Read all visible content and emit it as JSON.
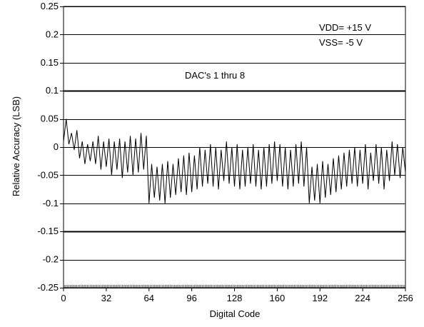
{
  "chart_data": {
    "type": "line",
    "title": "",
    "xlabel": "Digital Code",
    "ylabel": "Relative Accuracy (LSB)",
    "xlim": [
      0,
      256
    ],
    "ylim": [
      -0.25,
      0.25
    ],
    "x_ticks": [
      0,
      32,
      64,
      96,
      128,
      160,
      192,
      224,
      256
    ],
    "y_ticks": [
      0.25,
      0.2,
      0.15,
      0.1,
      0.05,
      0,
      -0.05,
      -0.1,
      -0.15,
      -0.2,
      -0.25
    ],
    "x_tick_labels": [
      "0",
      "32",
      "64",
      "96",
      "128",
      "160",
      "192",
      "224",
      "256"
    ],
    "y_tick_labels": [
      "0.25",
      "0.2",
      "0.15",
      "0.1",
      "0.05",
      "0",
      "-0.05",
      "-0.1",
      "-0.15",
      "-0.2",
      "-0.25"
    ],
    "grid": "horizontal",
    "bold_gridlines": [
      0.1,
      -0.15
    ],
    "annotations": {
      "vdd": "VDD= +15 V",
      "vss": "VSS= -5 V",
      "dacs": "DAC's 1 thru 8"
    },
    "series": [
      {
        "color": "#000000",
        "x": [
          0,
          2,
          4,
          6,
          8,
          10,
          12,
          14,
          16,
          18,
          20,
          22,
          24,
          26,
          28,
          30,
          32,
          34,
          36,
          38,
          40,
          42,
          44,
          46,
          48,
          50,
          52,
          54,
          56,
          58,
          60,
          62,
          64,
          66,
          68,
          70,
          72,
          74,
          76,
          78,
          80,
          82,
          84,
          86,
          88,
          90,
          92,
          94,
          96,
          98,
          100,
          102,
          104,
          106,
          108,
          110,
          112,
          114,
          116,
          118,
          120,
          122,
          124,
          126,
          128,
          130,
          132,
          134,
          136,
          138,
          140,
          142,
          144,
          146,
          148,
          150,
          152,
          154,
          156,
          158,
          160,
          162,
          164,
          166,
          168,
          170,
          172,
          174,
          176,
          178,
          180,
          182,
          184,
          186,
          188,
          190,
          192,
          194,
          196,
          198,
          200,
          202,
          204,
          206,
          208,
          210,
          212,
          214,
          216,
          218,
          220,
          222,
          224,
          226,
          228,
          230,
          232,
          234,
          236,
          238,
          240,
          242,
          244,
          246,
          248,
          250,
          252,
          254,
          256
        ],
        "y": [
          0.01,
          0.05,
          0.005,
          0.025,
          -0.005,
          0.03,
          -0.02,
          0.01,
          -0.03,
          0.005,
          -0.025,
          0.01,
          -0.03,
          0.02,
          -0.04,
          0.01,
          -0.035,
          0.015,
          -0.05,
          0.01,
          -0.04,
          0.015,
          -0.055,
          0.01,
          -0.045,
          0.02,
          -0.05,
          0.015,
          -0.045,
          0.025,
          -0.04,
          0.02,
          -0.1,
          -0.03,
          -0.09,
          -0.035,
          -0.095,
          -0.03,
          -0.1,
          -0.025,
          -0.09,
          -0.03,
          -0.085,
          -0.02,
          -0.08,
          -0.015,
          -0.085,
          -0.01,
          -0.08,
          -0.015,
          -0.075,
          0.0,
          -0.07,
          -0.005,
          -0.065,
          0.005,
          -0.07,
          0.0,
          -0.075,
          -0.005,
          -0.06,
          0.01,
          -0.065,
          0.0,
          -0.07,
          0.005,
          -0.075,
          -0.005,
          -0.07,
          0.0,
          -0.065,
          0.005,
          -0.07,
          -0.005,
          -0.075,
          0.0,
          -0.07,
          0.005,
          -0.065,
          0.01,
          -0.06,
          0.005,
          -0.07,
          0.0,
          -0.075,
          -0.005,
          -0.07,
          0.005,
          -0.065,
          0.01,
          -0.07,
          0.0,
          -0.1,
          -0.035,
          -0.095,
          -0.03,
          -0.1,
          -0.025,
          -0.09,
          -0.03,
          -0.085,
          -0.02,
          -0.08,
          -0.015,
          -0.075,
          -0.01,
          -0.07,
          -0.005,
          -0.065,
          0.0,
          -0.07,
          -0.005,
          -0.065,
          0.005,
          -0.075,
          -0.01,
          -0.06,
          0.005,
          -0.065,
          0.0,
          -0.075,
          -0.005,
          -0.06,
          0.01,
          -0.05,
          0.005,
          -0.055,
          0.0,
          -0.045
        ]
      }
    ]
  }
}
